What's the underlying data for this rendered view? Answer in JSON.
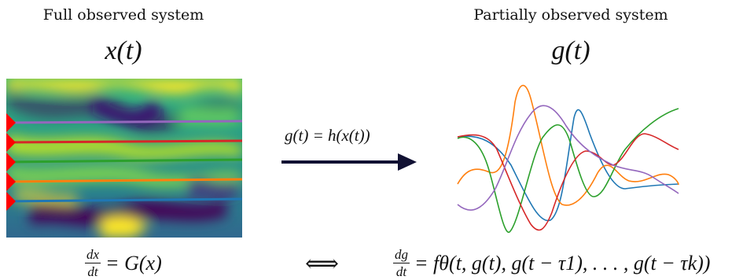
{
  "left": {
    "heading": "Full observed system",
    "state_label": "x(t)",
    "equation_frac_num": "dx",
    "equation_frac_den": "dt",
    "equation_rhs": "= G(x)"
  },
  "middle": {
    "mapping_label": "g(t) = h(x(t))",
    "equivalence_symbol": "⟺"
  },
  "right": {
    "heading": "Partially observed system",
    "observed_label": "g(t)",
    "equation_frac_num": "dg",
    "equation_frac_den": "dt",
    "equation_rhs": "= fθ(t, g(t), g(t − τ1), . . . , g(t − τk))"
  },
  "colors": {
    "series": [
      "#1f77b4",
      "#ff7f0e",
      "#2ca02c",
      "#d62728",
      "#9467bd"
    ],
    "marker": "#ff0000",
    "arrow": "#111133",
    "heatmap_dark": "#3b1f5a",
    "heatmap_mid": "#2a9d8f",
    "heatmap_light": "#f2e63a"
  }
}
